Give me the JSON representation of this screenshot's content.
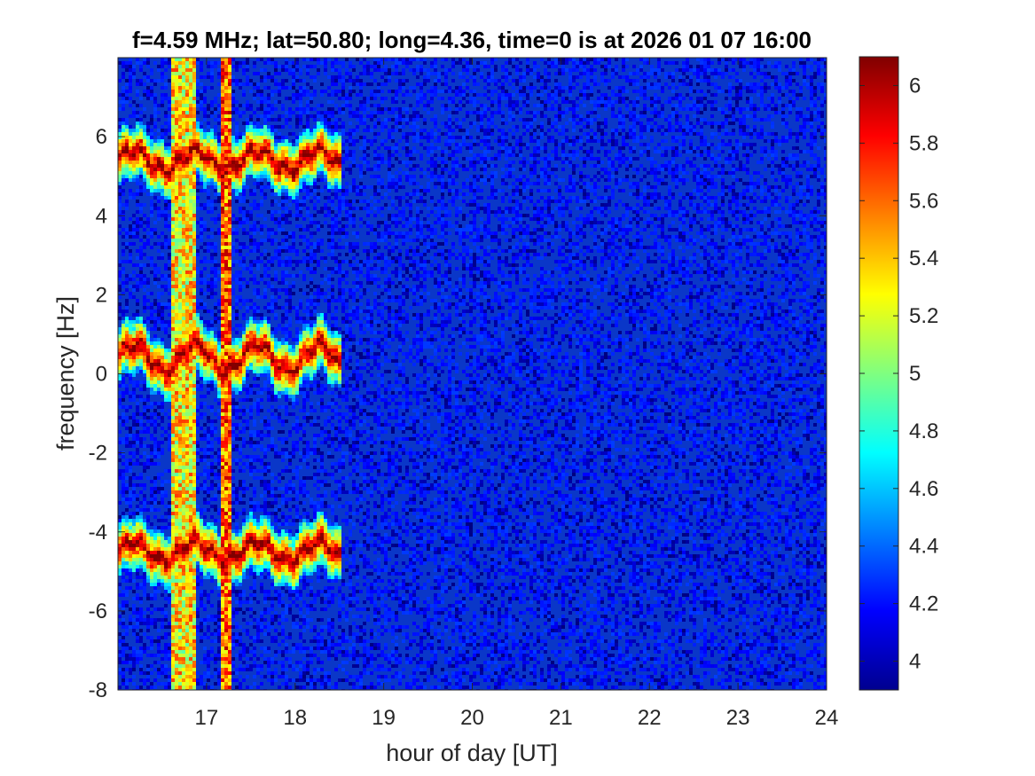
{
  "chart_data": {
    "type": "heatmap",
    "title": "f=4.59 MHz;  lat=50.80; long=4.36, time=0 is at 2026 01 07 16:00",
    "xlabel": "hour of day [UT]",
    "ylabel": "frequency [Hz]",
    "xlim": [
      16,
      24
    ],
    "ylim": [
      -8,
      8
    ],
    "x_ticks": [
      17,
      18,
      19,
      20,
      21,
      22,
      23,
      24
    ],
    "x_tick_labels": [
      "17",
      "18",
      "19",
      "20",
      "21",
      "22",
      "23",
      "24"
    ],
    "y_ticks": [
      -8,
      -6,
      -4,
      -2,
      0,
      2,
      4,
      6
    ],
    "y_tick_labels": [
      "-8",
      "-6",
      "-4",
      "-2",
      "0",
      "2",
      "4",
      "6"
    ],
    "colorbar": {
      "colormap": "jet",
      "range": [
        3.9,
        6.1
      ],
      "ticks": [
        4,
        4.2,
        4.4,
        4.6,
        4.8,
        5,
        5.2,
        5.4,
        5.6,
        5.8,
        6
      ],
      "tick_labels": [
        "4",
        "4.2",
        "4.4",
        "4.6",
        "4.8",
        "5",
        "5.2",
        "5.4",
        "5.6",
        "5.8",
        "6"
      ]
    },
    "background_level": 4.1,
    "traces": [
      {
        "x_start": 16.0,
        "x_end": 18.52,
        "center_hz": 5.4,
        "amplitude_hz": 0.25,
        "peak_level": 6.1
      },
      {
        "x_start": 16.0,
        "x_end": 18.52,
        "center_hz": 0.4,
        "amplitude_hz": 0.35,
        "peak_level": 6.1
      },
      {
        "x_start": 16.0,
        "x_end": 18.52,
        "center_hz": -4.5,
        "amplitude_hz": 0.25,
        "peak_level": 6.1
      }
    ],
    "vertical_bands": [
      {
        "x_start": 16.62,
        "x_end": 16.88,
        "level": 5.3
      },
      {
        "x_start": 17.15,
        "x_end": 17.28,
        "level": 5.6
      }
    ],
    "grid": false
  }
}
